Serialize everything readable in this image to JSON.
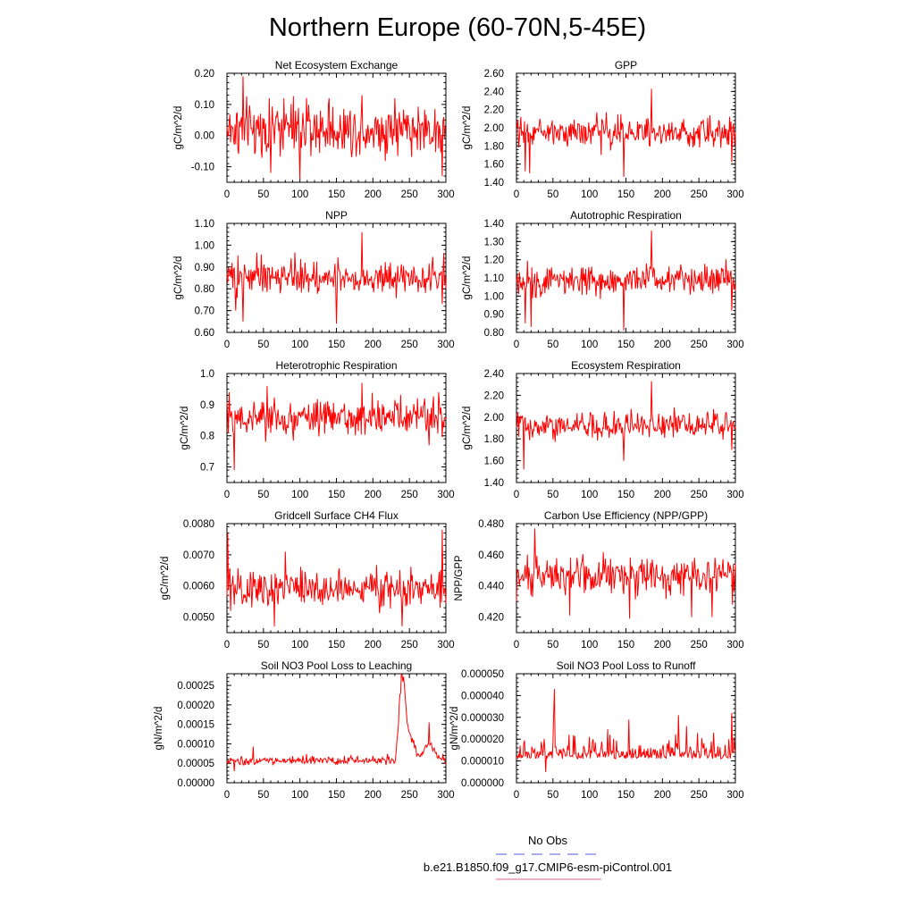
{
  "title": "Northern Europe (60-70N,5-45E)",
  "legend": {
    "entries": [
      {
        "label": "No Obs",
        "color": "#5555dd",
        "style": "dashed"
      },
      {
        "label": "b.e21.B1850.f09_g17.CMIP6-esm-piControl.001",
        "color": "#e06070",
        "style": "solid"
      }
    ]
  },
  "chart_data": [
    {
      "id": "nee",
      "type": "line",
      "title": "Net Ecosystem Exchange",
      "ylabel": "gC/m^2/d",
      "xlim": [
        0,
        300
      ],
      "ylim": [
        -0.15,
        0.2
      ],
      "yticks": [
        -0.1,
        0.0,
        0.1,
        0.2
      ],
      "ytick_labels": [
        "-0.10",
        "0.00",
        "0.10",
        "0.20"
      ],
      "xticks": [
        0,
        50,
        100,
        150,
        200,
        250,
        300
      ],
      "xtick_labels": [
        "0",
        "50",
        "100",
        "150",
        "200",
        "250",
        "300"
      ],
      "series": [
        {
          "color": "#ff0000",
          "base": 0.02,
          "noise": 0.06,
          "min": -0.14,
          "max": 0.19,
          "peaks": [
            [
              22,
              0.19
            ],
            [
              60,
              -0.12
            ],
            [
              78,
              0.12
            ],
            [
              100,
              -0.14
            ],
            [
              140,
              0.12
            ],
            [
              185,
              0.13
            ],
            [
              230,
              0.12
            ],
            [
              295,
              -0.13
            ]
          ]
        }
      ]
    },
    {
      "id": "gpp",
      "type": "line",
      "title": "GPP",
      "ylabel": "gC/m^2/d",
      "xlim": [
        0,
        300
      ],
      "ylim": [
        1.4,
        2.6
      ],
      "yticks": [
        1.4,
        1.6,
        1.8,
        2.0,
        2.2,
        2.4,
        2.6
      ],
      "ytick_labels": [
        "1.40",
        "1.60",
        "1.80",
        "2.00",
        "2.20",
        "2.40",
        "2.60"
      ],
      "xticks": [
        0,
        50,
        100,
        150,
        200,
        250,
        300
      ],
      "xtick_labels": [
        "0",
        "50",
        "100",
        "150",
        "200",
        "250",
        "300"
      ],
      "series": [
        {
          "color": "#ff0000",
          "base": 1.95,
          "noise": 0.11,
          "min": 1.45,
          "max": 2.43,
          "peaks": [
            [
              185,
              2.43
            ],
            [
              147,
              1.46
            ],
            [
              12,
              1.52
            ],
            [
              18,
              1.5
            ],
            [
              295,
              1.62
            ],
            [
              110,
              2.17
            ]
          ]
        }
      ]
    },
    {
      "id": "npp",
      "type": "line",
      "title": "NPP",
      "ylabel": "gC/m^2/d",
      "xlim": [
        0,
        300
      ],
      "ylim": [
        0.6,
        1.1
      ],
      "yticks": [
        0.6,
        0.7,
        0.8,
        0.9,
        1.0,
        1.1
      ],
      "ytick_labels": [
        "0.60",
        "0.70",
        "0.80",
        "0.90",
        "1.00",
        "1.10"
      ],
      "xticks": [
        0,
        50,
        100,
        150,
        200,
        250,
        300
      ],
      "xtick_labels": [
        "0",
        "50",
        "100",
        "150",
        "200",
        "250",
        "300"
      ],
      "series": [
        {
          "color": "#ff0000",
          "base": 0.855,
          "noise": 0.055,
          "min": 0.63,
          "max": 1.06,
          "peaks": [
            [
              185,
              1.06
            ],
            [
              150,
              0.64
            ],
            [
              22,
              0.65
            ],
            [
              12,
              0.7
            ],
            [
              295,
              0.73
            ]
          ]
        }
      ]
    },
    {
      "id": "ar",
      "type": "line",
      "title": "Autotrophic Respiration",
      "ylabel": "gC/m^2/d",
      "xlim": [
        0,
        300
      ],
      "ylim": [
        0.8,
        1.4
      ],
      "yticks": [
        0.8,
        0.9,
        1.0,
        1.1,
        1.2,
        1.3,
        1.4
      ],
      "ytick_labels": [
        "0.80",
        "0.90",
        "1.00",
        "1.10",
        "1.20",
        "1.30",
        "1.40"
      ],
      "xticks": [
        0,
        50,
        100,
        150,
        200,
        250,
        300
      ],
      "xtick_labels": [
        "0",
        "50",
        "100",
        "150",
        "200",
        "250",
        "300"
      ],
      "series": [
        {
          "color": "#ff0000",
          "base": 1.09,
          "noise": 0.06,
          "min": 0.81,
          "max": 1.36,
          "peaks": [
            [
              185,
              1.36
            ],
            [
              147,
              0.81
            ],
            [
              12,
              0.85
            ],
            [
              20,
              0.83
            ],
            [
              295,
              0.92
            ]
          ]
        }
      ]
    },
    {
      "id": "hr",
      "type": "line",
      "title": "Heterotrophic Respiration",
      "ylabel": "gC/m^2/d",
      "xlim": [
        0,
        300
      ],
      "ylim": [
        0.65,
        1.0
      ],
      "yticks": [
        0.7,
        0.8,
        0.9,
        1.0
      ],
      "ytick_labels": [
        "0.7",
        "0.8",
        "0.9",
        "1.0"
      ],
      "xticks": [
        0,
        50,
        100,
        150,
        200,
        250,
        300
      ],
      "xtick_labels": [
        "0",
        "50",
        "100",
        "150",
        "200",
        "250",
        "300"
      ],
      "series": [
        {
          "color": "#ff0000",
          "base": 0.855,
          "noise": 0.04,
          "min": 0.69,
          "max": 0.97,
          "peaks": [
            [
              10,
              0.69
            ],
            [
              185,
              0.97
            ],
            [
              55,
              0.96
            ],
            [
              3,
              0.94
            ],
            [
              290,
              0.94
            ]
          ]
        }
      ]
    },
    {
      "id": "er",
      "type": "line",
      "title": "Ecosystem Respiration",
      "ylabel": "gC/m^2/d",
      "xlim": [
        0,
        300
      ],
      "ylim": [
        1.4,
        2.4
      ],
      "yticks": [
        1.4,
        1.6,
        1.8,
        2.0,
        2.2,
        2.4
      ],
      "ytick_labels": [
        "1.40",
        "1.60",
        "1.80",
        "2.00",
        "2.20",
        "2.40"
      ],
      "xticks": [
        0,
        50,
        100,
        150,
        200,
        250,
        300
      ],
      "xtick_labels": [
        "0",
        "50",
        "100",
        "150",
        "200",
        "250",
        "300"
      ],
      "series": [
        {
          "color": "#ff0000",
          "base": 1.92,
          "noise": 0.09,
          "min": 1.52,
          "max": 2.33,
          "peaks": [
            [
              185,
              2.33
            ],
            [
              10,
              1.52
            ],
            [
              147,
              1.6
            ],
            [
              295,
              1.7
            ]
          ]
        }
      ]
    },
    {
      "id": "ch4",
      "type": "line",
      "title": "Gridcell Surface CH4 Flux",
      "ylabel": "gC/m^2/d",
      "xlim": [
        0,
        300
      ],
      "ylim": [
        0.0045,
        0.008
      ],
      "yticks": [
        0.005,
        0.006,
        0.007,
        0.008
      ],
      "ytick_labels": [
        "0.0050",
        "0.0060",
        "0.0070",
        "0.0080"
      ],
      "xticks": [
        0,
        50,
        100,
        150,
        200,
        250,
        300
      ],
      "xtick_labels": [
        "0",
        "50",
        "100",
        "150",
        "200",
        "250",
        "300"
      ],
      "series": [
        {
          "color": "#ff0000",
          "base": 0.0059,
          "noise": 0.00042,
          "min": 0.0046,
          "max": 0.0078,
          "peaks": [
            [
              1,
              0.0077
            ],
            [
              295,
              0.0078
            ],
            [
              240,
              0.0047
            ],
            [
              65,
              0.0047
            ],
            [
              5,
              0.0052
            ],
            [
              80,
              0.0071
            ]
          ]
        }
      ]
    },
    {
      "id": "cue",
      "type": "line",
      "title": "Carbon Use Efficiency (NPP/GPP)",
      "ylabel": "NPP/GPP",
      "xlim": [
        0,
        300
      ],
      "ylim": [
        0.41,
        0.48
      ],
      "yticks": [
        0.42,
        0.44,
        0.46,
        0.48
      ],
      "ytick_labels": [
        "0.420",
        "0.440",
        "0.460",
        "0.480"
      ],
      "xticks": [
        0,
        50,
        100,
        150,
        200,
        250,
        300
      ],
      "xtick_labels": [
        "0",
        "50",
        "100",
        "150",
        "200",
        "250",
        "300"
      ],
      "series": [
        {
          "color": "#ff0000",
          "base": 0.447,
          "noise": 0.0085,
          "min": 0.419,
          "max": 0.477,
          "peaks": [
            [
              25,
              0.477
            ],
            [
              155,
              0.419
            ],
            [
              240,
              0.42
            ],
            [
              73,
              0.421
            ],
            [
              268,
              0.42
            ],
            [
              296,
              0.428
            ]
          ]
        }
      ]
    },
    {
      "id": "leach",
      "type": "line",
      "title": "Soil NO3 Pool Loss to Leaching",
      "ylabel": "gN/m^2/d",
      "xlim": [
        0,
        300
      ],
      "ylim": [
        0,
        0.00028
      ],
      "yticks": [
        0,
        5e-05,
        0.0001,
        0.00015,
        0.0002,
        0.00025
      ],
      "ytick_labels": [
        "0.00000",
        "0.00005",
        "0.00010",
        "0.00015",
        "0.00020",
        "0.00025"
      ],
      "xticks": [
        0,
        50,
        100,
        150,
        200,
        250,
        300
      ],
      "xtick_labels": [
        "0",
        "50",
        "100",
        "150",
        "200",
        "250",
        "300"
      ],
      "series": [
        {
          "color": "#ff0000",
          "mode": "leach"
        }
      ]
    },
    {
      "id": "runoff",
      "type": "line",
      "title": "Soil NO3 Pool Loss to Runoff",
      "ylabel": "gN/m^2/d",
      "xlim": [
        0,
        300
      ],
      "ylim": [
        0,
        5e-05
      ],
      "yticks": [
        0,
        1e-05,
        2e-05,
        3e-05,
        4e-05,
        5e-05
      ],
      "ytick_labels": [
        "0.000000",
        "0.000010",
        "0.000020",
        "0.000030",
        "0.000040",
        "0.000050"
      ],
      "xticks": [
        0,
        50,
        100,
        150,
        200,
        250,
        300
      ],
      "xtick_labels": [
        "0",
        "50",
        "100",
        "150",
        "200",
        "250",
        "300"
      ],
      "series": [
        {
          "color": "#ff0000",
          "mode": "runoff"
        }
      ]
    }
  ]
}
